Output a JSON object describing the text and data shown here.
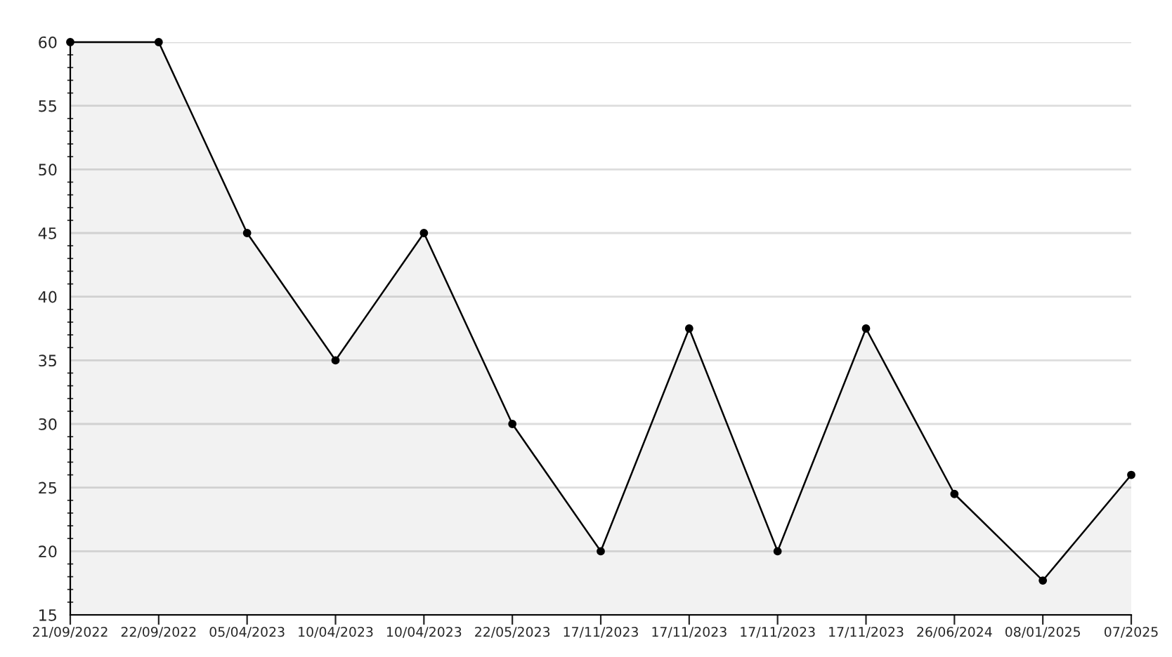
{
  "chart_data": {
    "type": "area",
    "categories": [
      "21/09/2022",
      "22/09/2022",
      "05/04/2023",
      "10/04/2023",
      "10/04/2023",
      "22/05/2023",
      "17/11/2023",
      "17/11/2023",
      "17/11/2023",
      "17/11/2023",
      "26/06/2024",
      "08/01/2025",
      "07/2025"
    ],
    "series": [
      {
        "color": "#000000",
        "values": [
          60,
          60,
          45,
          35,
          45,
          30,
          20,
          37.5,
          20,
          37.5,
          24.5,
          17.7,
          26
        ]
      }
    ],
    "ylim": [
      15,
      60
    ],
    "yticks": [
      15,
      20,
      25,
      30,
      35,
      40,
      45,
      50,
      55,
      60
    ],
    "grid": "y",
    "marker": "circle",
    "line_style": "solid"
  }
}
